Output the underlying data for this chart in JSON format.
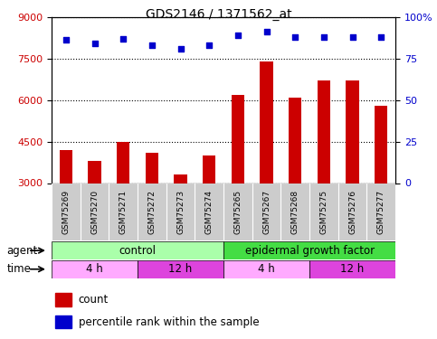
{
  "title": "GDS2146 / 1371562_at",
  "samples": [
    "GSM75269",
    "GSM75270",
    "GSM75271",
    "GSM75272",
    "GSM75273",
    "GSM75274",
    "GSM75265",
    "GSM75267",
    "GSM75268",
    "GSM75275",
    "GSM75276",
    "GSM75277"
  ],
  "counts": [
    4200,
    3800,
    4500,
    4100,
    3300,
    4000,
    6200,
    7400,
    6100,
    6700,
    6700,
    5800
  ],
  "percentile": [
    86,
    84,
    87,
    83,
    81,
    83,
    89,
    91,
    88,
    88,
    88,
    88
  ],
  "ylim_left": [
    3000,
    9000
  ],
  "ylim_right": [
    0,
    100
  ],
  "yticks_left": [
    3000,
    4500,
    6000,
    7500,
    9000
  ],
  "yticks_right": [
    0,
    25,
    50,
    75,
    100
  ],
  "bar_color": "#cc0000",
  "dot_color": "#0000cc",
  "agent_row": {
    "control_color": "#aaffaa",
    "egf_color": "#44dd44",
    "control_label": "control",
    "egf_label": "epidermal growth factor",
    "control_cols": 6,
    "egf_cols": 6
  },
  "time_row": {
    "segments": [
      {
        "label": "4 h",
        "color": "#ffaaff",
        "cols": 3
      },
      {
        "label": "12 h",
        "color": "#dd44dd",
        "cols": 3
      },
      {
        "label": "4 h",
        "color": "#ffaaff",
        "cols": 3
      },
      {
        "label": "12 h",
        "color": "#dd44dd",
        "cols": 3
      }
    ]
  },
  "legend": {
    "count_color": "#cc0000",
    "percentile_color": "#0000cc",
    "count_label": "count",
    "percentile_label": "percentile rank within the sample"
  },
  "label_colors": {
    "left_axis": "#cc0000",
    "right_axis": "#0000cc"
  },
  "sample_label_bg": "#cccccc",
  "plot_bg": "#ffffff"
}
